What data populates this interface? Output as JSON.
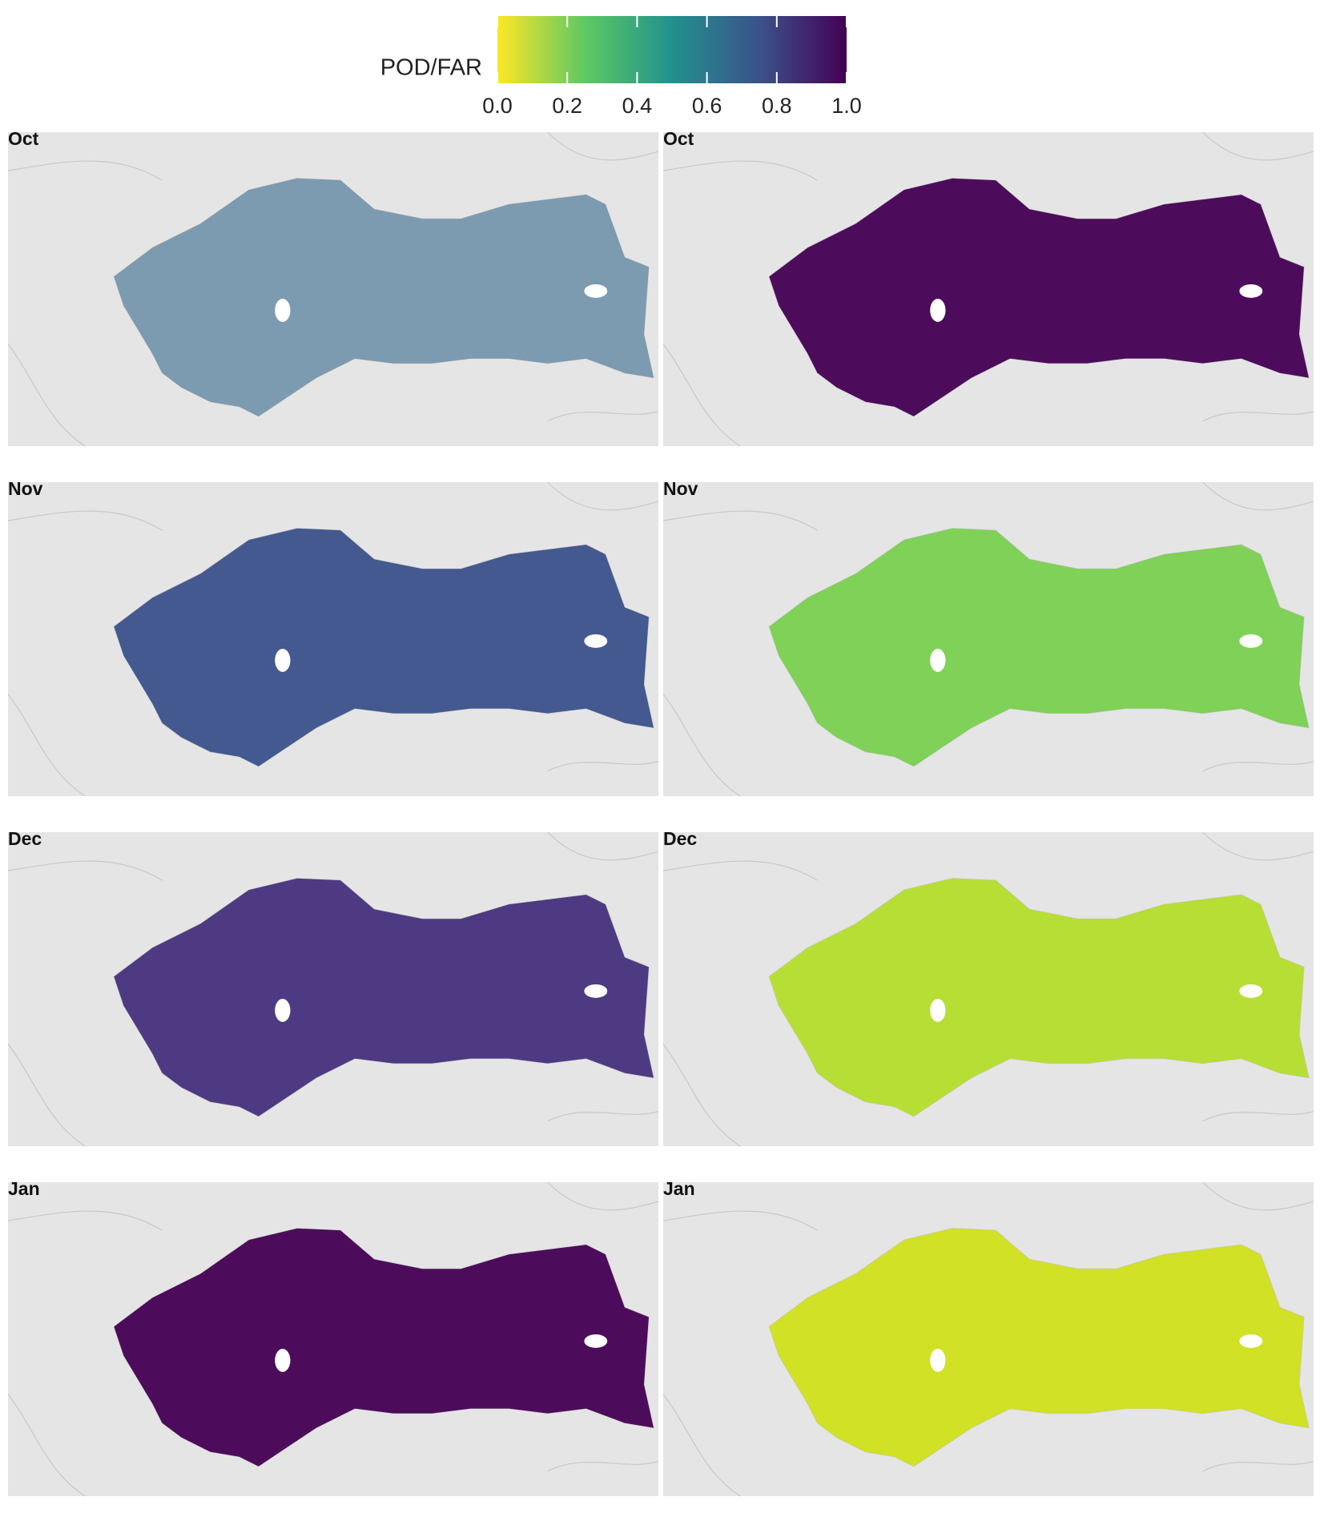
{
  "legend": {
    "title": "POD/FAR",
    "lim": [
      0,
      1
    ],
    "ticks": [
      {
        "value": 0,
        "label": "0.0"
      },
      {
        "value": 0.2,
        "label": "0.2"
      },
      {
        "value": 0.4,
        "label": "0.4"
      },
      {
        "value": 0.6,
        "label": "0.6"
      },
      {
        "value": 0.8,
        "label": "0.8"
      },
      {
        "value": 1,
        "label": "1.0"
      }
    ],
    "colors": [
      "#fde725",
      "#5ec962",
      "#21918c",
      "#3b528b",
      "#440154"
    ]
  },
  "panels": [
    {
      "label": "Oct",
      "color": "#31688e"
    },
    {
      "label": "Oct",
      "color": "#440154"
    },
    {
      "label": "Nov",
      "color": "#3b528b"
    },
    {
      "label": "Nov",
      "color": "#7ad151"
    },
    {
      "label": "Dec",
      "color": "#46327e"
    },
    {
      "label": "Dec",
      "color": "#b5de2b"
    },
    {
      "label": "Jan",
      "color": "#440154"
    },
    {
      "label": "Jan",
      "color": "#d0e11c"
    }
  ]
}
